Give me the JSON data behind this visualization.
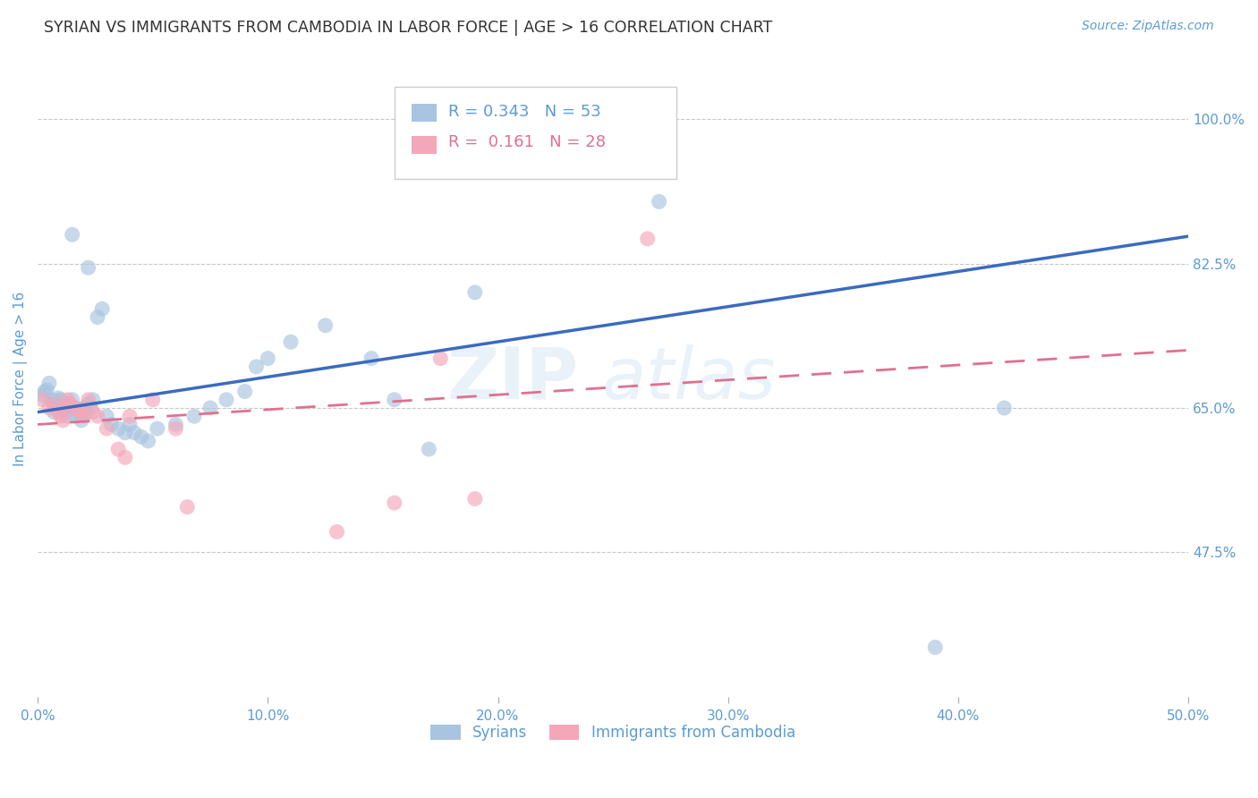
{
  "title": "SYRIAN VS IMMIGRANTS FROM CAMBODIA IN LABOR FORCE | AGE > 16 CORRELATION CHART",
  "source_text": "Source: ZipAtlas.com",
  "ylabel": "In Labor Force | Age > 16",
  "xlim": [
    0.0,
    0.5
  ],
  "ylim": [
    0.3,
    1.07
  ],
  "yticks": [
    0.475,
    0.65,
    0.825,
    1.0
  ],
  "ytick_labels": [
    "47.5%",
    "65.0%",
    "82.5%",
    "100.0%"
  ],
  "xticks": [
    0.0,
    0.1,
    0.2,
    0.3,
    0.4,
    0.5
  ],
  "xtick_labels": [
    "0.0%",
    "10.0%",
    "20.0%",
    "30.0%",
    "40.0%",
    "50.0%"
  ],
  "background_color": "#ffffff",
  "title_color": "#333333",
  "axis_color": "#5b9bd5",
  "grid_color": "#c8c8c8",
  "watermark_text": "ZIP atlas",
  "legend_r_syrian": "0.343",
  "legend_n_syrian": "53",
  "legend_r_cambodia": "0.161",
  "legend_n_cambodia": "28",
  "syrians_color": "#a8c4e0",
  "cambodia_color": "#f4a7b9",
  "syrian_line_color": "#3a6bbf",
  "cambodia_line_color": "#e07090",
  "syrians_x": [
    0.002,
    0.003,
    0.004,
    0.005,
    0.006,
    0.007,
    0.007,
    0.008,
    0.009,
    0.01,
    0.011,
    0.012,
    0.013,
    0.014,
    0.015,
    0.016,
    0.017,
    0.018,
    0.019,
    0.02,
    0.021,
    0.022,
    0.023,
    0.024,
    0.026,
    0.028,
    0.03,
    0.032,
    0.035,
    0.038,
    0.04,
    0.042,
    0.045,
    0.048,
    0.052,
    0.06,
    0.068,
    0.075,
    0.082,
    0.09,
    0.095,
    0.1,
    0.11,
    0.125,
    0.145,
    0.155,
    0.17,
    0.19,
    0.022,
    0.015,
    0.27,
    0.39,
    0.42
  ],
  "syrians_y": [
    0.665,
    0.67,
    0.672,
    0.68,
    0.66,
    0.655,
    0.645,
    0.658,
    0.662,
    0.66,
    0.65,
    0.645,
    0.64,
    0.655,
    0.66,
    0.65,
    0.64,
    0.645,
    0.635,
    0.65,
    0.645,
    0.655,
    0.65,
    0.66,
    0.76,
    0.77,
    0.64,
    0.63,
    0.625,
    0.62,
    0.63,
    0.62,
    0.615,
    0.61,
    0.625,
    0.63,
    0.64,
    0.65,
    0.66,
    0.67,
    0.7,
    0.71,
    0.73,
    0.75,
    0.71,
    0.66,
    0.6,
    0.79,
    0.82,
    0.86,
    0.9,
    0.36,
    0.65
  ],
  "cambodia_x": [
    0.002,
    0.005,
    0.007,
    0.009,
    0.01,
    0.011,
    0.012,
    0.013,
    0.014,
    0.016,
    0.018,
    0.019,
    0.02,
    0.022,
    0.024,
    0.026,
    0.03,
    0.035,
    0.038,
    0.04,
    0.05,
    0.06,
    0.065,
    0.13,
    0.155,
    0.175,
    0.19,
    0.265
  ],
  "cambodia_y": [
    0.66,
    0.65,
    0.655,
    0.645,
    0.64,
    0.635,
    0.65,
    0.66,
    0.655,
    0.65,
    0.648,
    0.645,
    0.64,
    0.66,
    0.645,
    0.64,
    0.625,
    0.6,
    0.59,
    0.64,
    0.66,
    0.625,
    0.53,
    0.5,
    0.535,
    0.71,
    0.54,
    0.855
  ],
  "syrian_line_x0": 0.0,
  "syrian_line_y0": 0.645,
  "syrian_line_x1": 0.5,
  "syrian_line_y1": 0.858,
  "cambodia_line_x0": 0.0,
  "cambodia_line_y0": 0.63,
  "cambodia_line_x1": 0.5,
  "cambodia_line_y1": 0.72
}
